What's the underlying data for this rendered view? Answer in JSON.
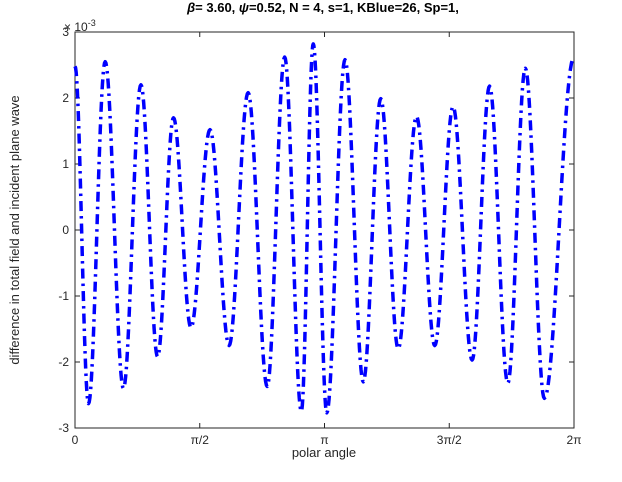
{
  "chart_data": {
    "type": "line",
    "title": "β= 3.60, ψ=0.52, N = 4, s=1, KBlue=26, Sp=1,",
    "title_parts": {
      "beta_symbol": "β",
      "beta_text": "= 3.60, ",
      "psi_symbol": "ψ",
      "rest_text": "=0.52, N = 4, s=1, KBlue=26, Sp=1,"
    },
    "xlabel": "polar angle",
    "ylabel": "difference in total field and incident plane wave",
    "y_exponent_label": {
      "base": "× 10",
      "exp": "-3"
    },
    "xlim": [
      0,
      6.283185
    ],
    "ylim": [
      -0.003,
      0.003
    ],
    "x_ticks": [
      {
        "value": 0,
        "label": "0"
      },
      {
        "value": 1.570796,
        "label": "π/2"
      },
      {
        "value": 3.141593,
        "label": "π"
      },
      {
        "value": 4.712389,
        "label": "3π/2"
      },
      {
        "value": 6.283185,
        "label": "2π"
      }
    ],
    "y_ticks": [
      {
        "value": -0.003,
        "label": "-3"
      },
      {
        "value": -0.002,
        "label": "-2"
      },
      {
        "value": -0.001,
        "label": "-1"
      },
      {
        "value": 0,
        "label": "0"
      },
      {
        "value": 0.001,
        "label": "1"
      },
      {
        "value": 0.002,
        "label": "2"
      },
      {
        "value": 0.003,
        "label": "3"
      }
    ],
    "grid": false,
    "series": [
      {
        "color": "#0000ff",
        "line_style": "dash-dot",
        "extrema": [
          [
            0.0,
            0.00248
          ],
          [
            0.17,
            -0.00263
          ],
          [
            0.38,
            0.00255
          ],
          [
            0.61,
            -0.0024
          ],
          [
            0.83,
            0.0022
          ],
          [
            1.04,
            -0.00192
          ],
          [
            1.24,
            0.0017
          ],
          [
            1.46,
            -0.00148
          ],
          [
            1.7,
            0.00152
          ],
          [
            1.94,
            -0.00175
          ],
          [
            2.18,
            0.00208
          ],
          [
            2.42,
            -0.00237
          ],
          [
            2.64,
            0.00262
          ],
          [
            2.85,
            -0.00275
          ],
          [
            3.0,
            0.00282
          ],
          [
            3.17,
            -0.00277
          ],
          [
            3.4,
            0.00258
          ],
          [
            3.63,
            -0.0023
          ],
          [
            3.85,
            0.00199
          ],
          [
            4.07,
            -0.0018
          ],
          [
            4.3,
            0.00172
          ],
          [
            4.53,
            -0.00175
          ],
          [
            4.76,
            0.00187
          ],
          [
            5.0,
            -0.00197
          ],
          [
            5.22,
            0.00218
          ],
          [
            5.45,
            -0.00232
          ],
          [
            5.67,
            0.00245
          ],
          [
            5.91,
            -0.00255
          ],
          [
            6.283,
            0.00262
          ]
        ]
      }
    ]
  }
}
